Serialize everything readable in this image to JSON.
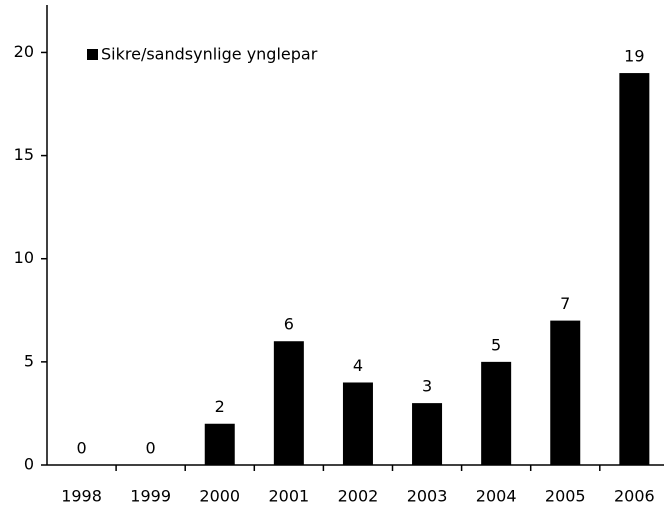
{
  "chart_data": {
    "type": "bar",
    "categories": [
      "1998",
      "1999",
      "2000",
      "2001",
      "2002",
      "2003",
      "2004",
      "2005",
      "2006"
    ],
    "series": [
      {
        "name": "Sikre/sandsynlige ynglepar",
        "color": "#000000",
        "values": [
          0,
          0,
          2,
          6,
          4,
          3,
          5,
          7,
          19
        ]
      }
    ],
    "ylim": [
      0,
      22.3
    ],
    "yticks": [
      0,
      5,
      10,
      15,
      20
    ],
    "grid": false,
    "legend": "top-left"
  }
}
